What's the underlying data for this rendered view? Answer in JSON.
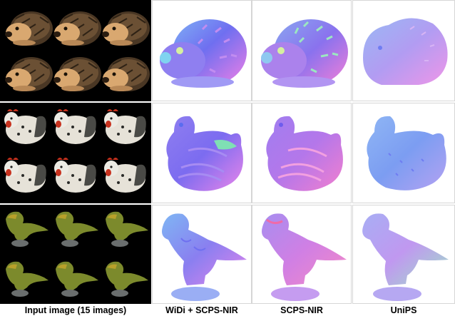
{
  "column_labels": {
    "input": "Input image (15 images)",
    "widi": "WiDi + SCPS-NIR",
    "scps": "SCPS-NIR",
    "unips": "UniPS"
  },
  "rows": [
    "hedgehog",
    "chicken",
    "dinosaur"
  ],
  "colors": {
    "normal_blue": "#6f7cf2",
    "normal_pink": "#ee7fe6",
    "normal_cyan": "#7fd3f0",
    "input_background": "#000000",
    "hedgehog_face": "#d9a870",
    "hedgehog_spines": "#4a3724",
    "chicken_body": "#e6e2d8",
    "chicken_comb": "#c8321e",
    "dino_body": "#7c8a2c"
  }
}
